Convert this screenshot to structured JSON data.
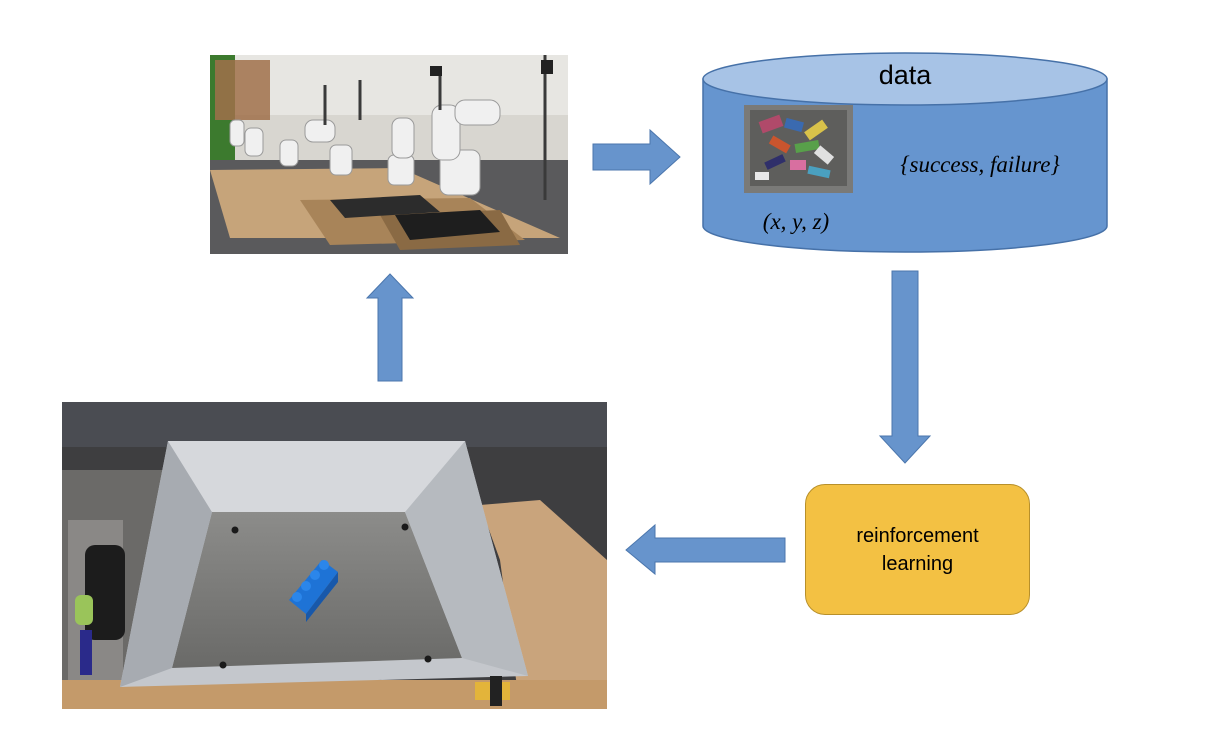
{
  "diagram": {
    "title": "data",
    "data_contents": {
      "label_outcome": "{success, failure}",
      "label_position": "(x, y, z)",
      "thumbnail_icon": "bin-of-objects-image"
    },
    "learner": {
      "line1": "reinforcement",
      "line2": "learning"
    },
    "images": {
      "robot_arms": "robot-arm-farm-photo",
      "grasp_bin": "bin-with-blue-block-photo"
    },
    "colors": {
      "arrow_fill": "#6794cc",
      "cylinder_body": "#6695cf",
      "cylinder_top": "#a7c3e6",
      "rl_box": "#f3c143"
    },
    "flow": [
      "robot-arms",
      "data",
      "reinforcement learning",
      "grasp-bin",
      "robot-arms"
    ]
  }
}
